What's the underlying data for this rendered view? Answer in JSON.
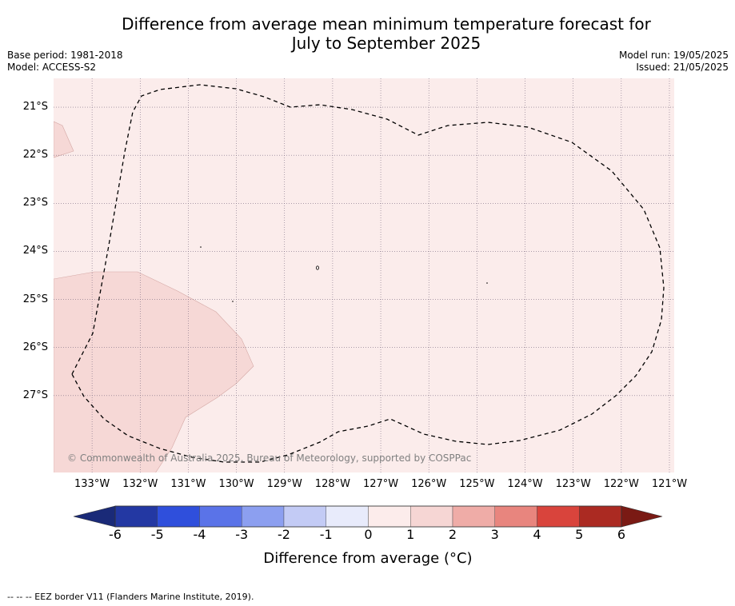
{
  "chart_data": {
    "type": "map",
    "title": "Difference from average mean minimum temperature forecast for\nJuly to September 2025",
    "base_period": "Base period: 1981-2018",
    "model": "Model: ACCESS-S2",
    "model_run": "Model run: 19/05/2025",
    "issued": "Issued: 21/05/2025",
    "lon_ticks": [
      "133°W",
      "132°W",
      "131°W",
      "130°W",
      "129°W",
      "128°W",
      "127°W",
      "126°W",
      "125°W",
      "124°W",
      "123°W",
      "122°W",
      "121°W"
    ],
    "lat_ticks": [
      "21°S",
      "22°S",
      "23°S",
      "24°S",
      "25°S",
      "26°S",
      "27°S"
    ],
    "lon_range": [
      -133.8,
      -120.9
    ],
    "lat_range": [
      -28.6,
      -20.4
    ],
    "colorbar": {
      "label": "Difference from average (°C)",
      "ticks": [
        "-6",
        "-5",
        "-4",
        "-3",
        "-2",
        "-1",
        "0",
        "1",
        "2",
        "3",
        "4",
        "5",
        "6"
      ],
      "bin_edges": [
        -6,
        -5,
        -4,
        -3,
        -2,
        -1,
        0,
        1,
        2,
        3,
        4,
        5,
        6
      ],
      "colors": [
        "#2338a3",
        "#2f4fdc",
        "#5a73e8",
        "#8c9ff0",
        "#c3cbf5",
        "#e8ebfb",
        "#fceceb",
        "#f6d6d4",
        "#efaca7",
        "#e8857e",
        "#d9443c",
        "#ab2a22"
      ],
      "extend_low_color": "#1a2a78",
      "extend_high_color": "#7a1a14"
    },
    "regions": [
      {
        "category": "0 to 1",
        "color": "#fbeceb"
      },
      {
        "category": "1 to 2",
        "color": "#f6d8d6"
      }
    ],
    "copyright": "© Commonwealth of Australia 2025, Bureau of Meteorology, supported by COSPPac",
    "footnote": "--  --  -- EEZ border V11 (Flanders Marine Institute, 2019)."
  }
}
